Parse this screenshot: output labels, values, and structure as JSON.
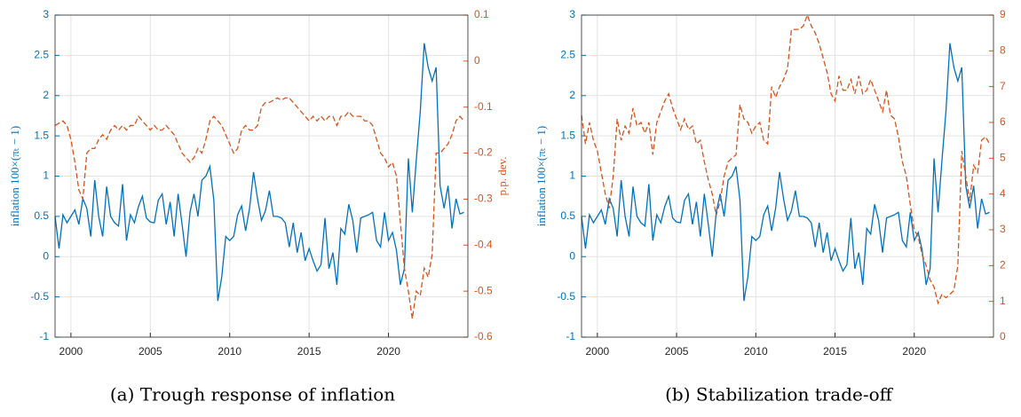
{
  "chart_data": [
    {
      "type": "line",
      "caption": "(a) Trough response of inflation",
      "ylabel": "inflation 100×(πₜ − 1)",
      "y2label": "p.p. dev.",
      "x": [
        1999,
        1999.25,
        1999.5,
        1999.75,
        2000,
        2000.25,
        2000.5,
        2000.75,
        2001,
        2001.25,
        2001.5,
        2001.75,
        2002,
        2002.25,
        2002.5,
        2002.75,
        2003,
        2003.25,
        2003.5,
        2003.75,
        2004,
        2004.25,
        2004.5,
        2004.75,
        2005,
        2005.25,
        2005.5,
        2005.75,
        2006,
        2006.25,
        2006.5,
        2006.75,
        2007,
        2007.25,
        2007.5,
        2007.75,
        2008,
        2008.25,
        2008.5,
        2008.75,
        2009,
        2009.25,
        2009.5,
        2009.75,
        2010,
        2010.25,
        2010.5,
        2010.75,
        2011,
        2011.25,
        2011.5,
        2011.75,
        2012,
        2012.25,
        2012.5,
        2012.75,
        2013,
        2013.25,
        2013.5,
        2013.75,
        2014,
        2014.25,
        2014.5,
        2014.75,
        2015,
        2015.25,
        2015.5,
        2015.75,
        2016,
        2016.25,
        2016.5,
        2016.75,
        2017,
        2017.25,
        2017.5,
        2017.75,
        2018,
        2018.25,
        2018.5,
        2018.75,
        2019,
        2019.25,
        2019.5,
        2019.75,
        2020,
        2020.25,
        2020.5,
        2020.75,
        2021,
        2021.25,
        2021.5,
        2021.75,
        2022,
        2022.25,
        2022.5,
        2022.75,
        2023,
        2023.25,
        2023.5,
        2023.75,
        2024,
        2024.25,
        2024.5,
        2024.75
      ],
      "xlim": [
        1999,
        2025
      ],
      "xticks": [
        2000,
        2005,
        2010,
        2015,
        2020
      ],
      "ylim": [
        -1,
        3
      ],
      "yticks": [
        -1,
        -0.5,
        0,
        0.5,
        1,
        1.5,
        2,
        2.5,
        3
      ],
      "y2lim": [
        -0.6,
        0.1
      ],
      "y2ticks": [
        -0.6,
        -0.5,
        -0.4,
        -0.3,
        -0.2,
        -0.1,
        0,
        0.1
      ],
      "grid": true,
      "series": [
        {
          "color": "#0072BD",
          "linestyle": "solid",
          "values": [
            0.5,
            0.1,
            0.52,
            0.42,
            0.5,
            0.58,
            0.4,
            0.72,
            0.6,
            0.25,
            0.95,
            0.5,
            0.25,
            0.87,
            0.5,
            0.42,
            0.38,
            0.9,
            0.2,
            0.52,
            0.42,
            0.62,
            0.75,
            0.48,
            0.43,
            0.42,
            0.7,
            0.78,
            0.4,
            0.68,
            0.25,
            0.78,
            0.4,
            0,
            0.55,
            0.78,
            0.5,
            0.95,
            1,
            1.12,
            0.7,
            -0.55,
            -0.25,
            0.25,
            0.2,
            0.25,
            0.52,
            0.63,
            0.32,
            0.6,
            1.05,
            0.72,
            0.45,
            0.57,
            0.82,
            0.5,
            0.5,
            0.48,
            0.42,
            0.12,
            0.42,
            0.05,
            0.3,
            -0.05,
            0.1,
            -0.05,
            -0.18,
            -0.1,
            0.48,
            -0.15,
            0.05,
            -0.35,
            0.35,
            0.28,
            0.65,
            0.45,
            0.05,
            0.48,
            0.5,
            0.52,
            0.55,
            0.2,
            0.12,
            0.55,
            0.2,
            0.3,
            0.08,
            -0.35,
            -0.15,
            1.22,
            0.55,
            1.2,
            1.8,
            2.65,
            2.35,
            2.18,
            2.35,
            0.88,
            0.6,
            0.88,
            0.35,
            0.72,
            0.53,
            0.55
          ]
        },
        {
          "color": "#D95319",
          "linestyle": "dashed",
          "axis": "y2",
          "values": [
            -0.14,
            -0.135,
            -0.13,
            -0.14,
            -0.17,
            -0.22,
            -0.28,
            -0.3,
            -0.2,
            -0.19,
            -0.19,
            -0.17,
            -0.16,
            -0.17,
            -0.15,
            -0.14,
            -0.15,
            -0.14,
            -0.15,
            -0.14,
            -0.14,
            -0.12,
            -0.13,
            -0.14,
            -0.15,
            -0.14,
            -0.15,
            -0.15,
            -0.14,
            -0.15,
            -0.16,
            -0.18,
            -0.2,
            -0.21,
            -0.22,
            -0.21,
            -0.19,
            -0.2,
            -0.17,
            -0.13,
            -0.12,
            -0.13,
            -0.14,
            -0.16,
            -0.18,
            -0.2,
            -0.19,
            -0.15,
            -0.14,
            -0.15,
            -0.15,
            -0.14,
            -0.1,
            -0.09,
            -0.09,
            -0.085,
            -0.08,
            -0.085,
            -0.08,
            -0.08,
            -0.09,
            -0.1,
            -0.11,
            -0.12,
            -0.13,
            -0.12,
            -0.13,
            -0.12,
            -0.13,
            -0.12,
            -0.12,
            -0.14,
            -0.12,
            -0.12,
            -0.11,
            -0.12,
            -0.12,
            -0.12,
            -0.13,
            -0.13,
            -0.14,
            -0.17,
            -0.2,
            -0.21,
            -0.23,
            -0.22,
            -0.25,
            -0.35,
            -0.45,
            -0.5,
            -0.56,
            -0.5,
            -0.51,
            -0.45,
            -0.47,
            -0.42,
            -0.2,
            -0.2,
            -0.19,
            -0.18,
            -0.16,
            -0.13,
            -0.12,
            -0.13
          ]
        }
      ]
    },
    {
      "type": "line",
      "caption": "(b) Stabilization trade-off",
      "ylabel": "inflation 100×(πₜ − 1)",
      "y2label": "stabilization trade-off",
      "x": [
        1999,
        1999.25,
        1999.5,
        1999.75,
        2000,
        2000.25,
        2000.5,
        2000.75,
        2001,
        2001.25,
        2001.5,
        2001.75,
        2002,
        2002.25,
        2002.5,
        2002.75,
        2003,
        2003.25,
        2003.5,
        2003.75,
        2004,
        2004.25,
        2004.5,
        2004.75,
        2005,
        2005.25,
        2005.5,
        2005.75,
        2006,
        2006.25,
        2006.5,
        2006.75,
        2007,
        2007.25,
        2007.5,
        2007.75,
        2008,
        2008.25,
        2008.5,
        2008.75,
        2009,
        2009.25,
        2009.5,
        2009.75,
        2010,
        2010.25,
        2010.5,
        2010.75,
        2011,
        2011.25,
        2011.5,
        2011.75,
        2012,
        2012.25,
        2012.5,
        2012.75,
        2013,
        2013.25,
        2013.5,
        2013.75,
        2014,
        2014.25,
        2014.5,
        2014.75,
        2015,
        2015.25,
        2015.5,
        2015.75,
        2016,
        2016.25,
        2016.5,
        2016.75,
        2017,
        2017.25,
        2017.5,
        2017.75,
        2018,
        2018.25,
        2018.5,
        2018.75,
        2019,
        2019.25,
        2019.5,
        2019.75,
        2020,
        2020.25,
        2020.5,
        2020.75,
        2021,
        2021.25,
        2021.5,
        2021.75,
        2022,
        2022.25,
        2022.5,
        2022.75,
        2023,
        2023.25,
        2023.5,
        2023.75,
        2024,
        2024.25,
        2024.5,
        2024.75
      ],
      "xlim": [
        1999,
        2025
      ],
      "xticks": [
        2000,
        2005,
        2010,
        2015,
        2020
      ],
      "ylim": [
        -1,
        3
      ],
      "yticks": [
        -1,
        -0.5,
        0,
        0.5,
        1,
        1.5,
        2,
        2.5,
        3
      ],
      "y2lim": [
        0,
        9
      ],
      "y2ticks": [
        0,
        1,
        2,
        3,
        4,
        5,
        6,
        7,
        8,
        9
      ],
      "grid": true,
      "series": [
        {
          "color": "#0072BD",
          "linestyle": "solid",
          "values": [
            0.5,
            0.1,
            0.52,
            0.42,
            0.5,
            0.58,
            0.4,
            0.72,
            0.6,
            0.25,
            0.95,
            0.5,
            0.25,
            0.87,
            0.5,
            0.42,
            0.38,
            0.9,
            0.2,
            0.52,
            0.42,
            0.62,
            0.75,
            0.48,
            0.43,
            0.42,
            0.7,
            0.78,
            0.4,
            0.68,
            0.25,
            0.78,
            0.4,
            0,
            0.55,
            0.78,
            0.5,
            0.95,
            1,
            1.12,
            0.7,
            -0.55,
            -0.25,
            0.25,
            0.2,
            0.25,
            0.52,
            0.63,
            0.32,
            0.6,
            1.05,
            0.72,
            0.45,
            0.57,
            0.82,
            0.5,
            0.5,
            0.48,
            0.42,
            0.12,
            0.42,
            0.05,
            0.3,
            -0.05,
            0.1,
            -0.05,
            -0.18,
            -0.1,
            0.48,
            -0.15,
            0.05,
            -0.35,
            0.35,
            0.28,
            0.65,
            0.45,
            0.05,
            0.48,
            0.5,
            0.52,
            0.55,
            0.2,
            0.12,
            0.55,
            0.2,
            0.3,
            0.08,
            -0.35,
            -0.15,
            1.22,
            0.55,
            1.2,
            1.8,
            2.65,
            2.35,
            2.18,
            2.35,
            0.88,
            0.6,
            0.88,
            0.35,
            0.72,
            0.53,
            0.55
          ]
        },
        {
          "color": "#D95319",
          "linestyle": "dashed",
          "axis": "y2",
          "values": [
            6.2,
            5.4,
            6,
            5.5,
            5.2,
            4.6,
            4,
            3.6,
            4.5,
            6.1,
            5.5,
            5.9,
            5.7,
            6.4,
            5.9,
            6,
            5.7,
            6,
            5.1,
            6,
            6.3,
            6.6,
            6.8,
            6.4,
            6.1,
            5.8,
            6.1,
            5.8,
            5.9,
            5.4,
            5.5,
            4.9,
            4.4,
            4,
            3.4,
            3.8,
            4.5,
            4.9,
            5,
            5.1,
            6.5,
            6.1,
            6,
            5.7,
            5.9,
            6,
            5.5,
            5.4,
            7,
            6.7,
            7,
            7.2,
            7.5,
            8.6,
            8.6,
            8.6,
            8.7,
            9,
            8.7,
            8.5,
            8.2,
            7.8,
            7.4,
            6.8,
            6.6,
            7.3,
            6.9,
            6.9,
            7.2,
            6.8,
            7.3,
            6.8,
            6.9,
            7.2,
            6.9,
            6.6,
            6.3,
            6.9,
            6.2,
            6.1,
            5.6,
            4.9,
            4.5,
            3.7,
            3,
            2.8,
            2.3,
            2,
            1.6,
            1.4,
            0.95,
            1.2,
            1.1,
            1.2,
            1.3,
            2,
            5.2,
            4.5,
            3.8,
            4.8,
            4.6,
            5.5,
            5.6,
            5.4
          ]
        }
      ]
    }
  ]
}
